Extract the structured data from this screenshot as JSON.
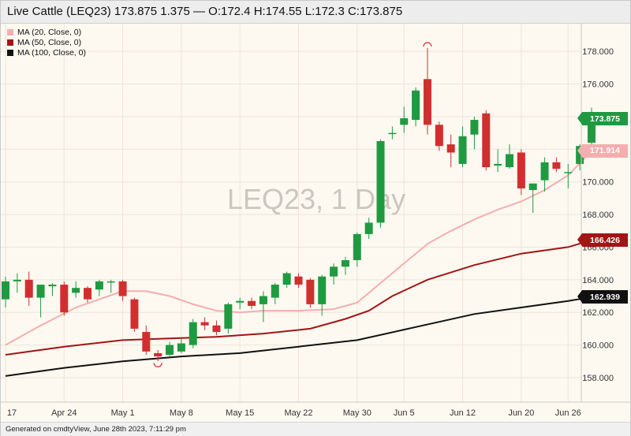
{
  "header": {
    "title": "Live Cattle (LEQ23) 173.875 1.375 — O:172.4 H:174.55 L:172.3 C:173.875"
  },
  "watermark": "LEQ23, 1 Day",
  "legend": [
    {
      "label": "MA (20, Close, 0)",
      "color": "#f4aeb0"
    },
    {
      "label": "MA (50, Close, 0)",
      "color": "#a31414"
    },
    {
      "label": "MA (100, Close, 0)",
      "color": "#111111"
    }
  ],
  "price_badges": [
    {
      "label": "173.875",
      "value": 173.875,
      "bg": "#1f9a41",
      "fg": "#ffffff"
    },
    {
      "label": "171.914",
      "value": 171.914,
      "bg": "#f4aeb0",
      "fg": "#ffffff"
    },
    {
      "label": "166.426",
      "value": 166.426,
      "bg": "#a31414",
      "fg": "#ffffff"
    },
    {
      "label": "162.939",
      "value": 162.939,
      "bg": "#111111",
      "fg": "#ffffff"
    }
  ],
  "footer": {
    "text": "Generated on cmdtyView, June 28th 2023, 7:11:29 pm"
  },
  "colors": {
    "up": "#1f9a41",
    "down": "#d12f2f",
    "background": "#fdf9f1",
    "grid": "#ebe5d8"
  },
  "chart_data": {
    "type": "candlestick",
    "title": "Live Cattle (LEQ23) 173.875 1.375 — O:172.4 H:174.55 L:172.3 C:173.875",
    "ylim": [
      156.5,
      179.7
    ],
    "y_ticks": [
      158.0,
      160.0,
      162.0,
      164.0,
      166.0,
      168.0,
      170.0,
      172.0,
      174.0,
      176.0,
      178.0
    ],
    "y_tick_labels": [
      "158.000",
      "160.000",
      "162.000",
      "164.000",
      "166.000",
      "168.000",
      "170.000",
      "172.000",
      "174.000",
      "176.000",
      "178.000"
    ],
    "x_tick_labels": [
      {
        "label": "17",
        "index": 0
      },
      {
        "label": "Apr 24",
        "index": 5
      },
      {
        "label": "May 1",
        "index": 10
      },
      {
        "label": "May 8",
        "index": 15
      },
      {
        "label": "May 15",
        "index": 20
      },
      {
        "label": "May 22",
        "index": 25
      },
      {
        "label": "May 30",
        "index": 30
      },
      {
        "label": "Jun 5",
        "index": 34
      },
      {
        "label": "Jun 12",
        "index": 39
      },
      {
        "label": "Jun 20",
        "index": 44
      },
      {
        "label": "Jun 26",
        "index": 48
      }
    ],
    "candles": [
      {
        "o": 162.8,
        "h": 164.2,
        "l": 162.3,
        "c": 163.9
      },
      {
        "o": 163.9,
        "h": 164.4,
        "l": 163.2,
        "c": 164.0
      },
      {
        "o": 164.0,
        "h": 164.5,
        "l": 162.4,
        "c": 162.9
      },
      {
        "o": 162.9,
        "h": 163.6,
        "l": 161.7,
        "c": 163.7
      },
      {
        "o": 163.6,
        "h": 163.8,
        "l": 163.0,
        "c": 163.7
      },
      {
        "o": 163.7,
        "h": 163.9,
        "l": 161.8,
        "c": 162.0
      },
      {
        "o": 163.2,
        "h": 163.9,
        "l": 162.9,
        "c": 163.5
      },
      {
        "o": 163.5,
        "h": 163.6,
        "l": 162.6,
        "c": 162.8
      },
      {
        "o": 163.4,
        "h": 164.0,
        "l": 163.0,
        "c": 163.9
      },
      {
        "o": 163.9,
        "h": 164.0,
        "l": 163.2,
        "c": 163.9
      },
      {
        "o": 163.9,
        "h": 164.0,
        "l": 162.7,
        "c": 163.0
      },
      {
        "o": 162.8,
        "h": 162.9,
        "l": 160.8,
        "c": 161.0
      },
      {
        "o": 160.8,
        "h": 161.2,
        "l": 159.4,
        "c": 159.6
      },
      {
        "o": 159.5,
        "h": 159.7,
        "l": 159.0,
        "c": 159.3
      },
      {
        "o": 159.4,
        "h": 160.2,
        "l": 159.3,
        "c": 160.0
      },
      {
        "o": 159.6,
        "h": 160.4,
        "l": 159.5,
        "c": 160.1
      },
      {
        "o": 160.0,
        "h": 161.6,
        "l": 159.8,
        "c": 161.4
      },
      {
        "o": 161.4,
        "h": 161.7,
        "l": 160.9,
        "c": 161.2
      },
      {
        "o": 161.2,
        "h": 161.5,
        "l": 160.6,
        "c": 160.8
      },
      {
        "o": 161.0,
        "h": 162.6,
        "l": 160.7,
        "c": 162.5
      },
      {
        "o": 162.6,
        "h": 162.9,
        "l": 162.2,
        "c": 162.7
      },
      {
        "o": 162.7,
        "h": 162.9,
        "l": 162.2,
        "c": 162.4
      },
      {
        "o": 162.5,
        "h": 163.3,
        "l": 161.4,
        "c": 163.0
      },
      {
        "o": 162.9,
        "h": 163.8,
        "l": 162.5,
        "c": 163.7
      },
      {
        "o": 163.7,
        "h": 164.5,
        "l": 163.5,
        "c": 164.4
      },
      {
        "o": 164.2,
        "h": 164.4,
        "l": 163.5,
        "c": 163.7
      },
      {
        "o": 164.0,
        "h": 164.1,
        "l": 162.3,
        "c": 162.5
      },
      {
        "o": 162.5,
        "h": 164.3,
        "l": 161.8,
        "c": 164.2
      },
      {
        "o": 164.2,
        "h": 165.0,
        "l": 163.7,
        "c": 164.8
      },
      {
        "o": 164.8,
        "h": 165.4,
        "l": 164.3,
        "c": 165.2
      },
      {
        "o": 165.2,
        "h": 166.9,
        "l": 164.8,
        "c": 166.8
      },
      {
        "o": 166.8,
        "h": 167.8,
        "l": 166.5,
        "c": 167.5
      },
      {
        "o": 167.5,
        "h": 172.6,
        "l": 167.2,
        "c": 172.5
      },
      {
        "o": 173.0,
        "h": 173.4,
        "l": 172.6,
        "c": 173.0
      },
      {
        "o": 173.5,
        "h": 174.6,
        "l": 173.0,
        "c": 173.9
      },
      {
        "o": 173.8,
        "h": 175.8,
        "l": 173.4,
        "c": 175.6
      },
      {
        "o": 176.3,
        "h": 178.2,
        "l": 172.9,
        "c": 173.5
      },
      {
        "o": 173.5,
        "h": 173.7,
        "l": 171.9,
        "c": 172.2
      },
      {
        "o": 172.3,
        "h": 172.9,
        "l": 170.9,
        "c": 171.8
      },
      {
        "o": 171.1,
        "h": 173.4,
        "l": 170.9,
        "c": 172.8
      },
      {
        "o": 172.9,
        "h": 174.0,
        "l": 172.0,
        "c": 173.8
      },
      {
        "o": 174.2,
        "h": 174.4,
        "l": 170.7,
        "c": 170.9
      },
      {
        "o": 171.0,
        "h": 172.0,
        "l": 170.6,
        "c": 171.1
      },
      {
        "o": 170.9,
        "h": 172.3,
        "l": 170.8,
        "c": 171.7
      },
      {
        "o": 171.8,
        "h": 172.0,
        "l": 169.2,
        "c": 169.6
      },
      {
        "o": 169.5,
        "h": 169.9,
        "l": 168.1,
        "c": 169.9
      },
      {
        "o": 170.1,
        "h": 171.5,
        "l": 169.4,
        "c": 171.2
      },
      {
        "o": 171.2,
        "h": 171.5,
        "l": 170.6,
        "c": 170.8
      },
      {
        "o": 170.6,
        "h": 171.1,
        "l": 169.6,
        "c": 170.6
      },
      {
        "o": 171.1,
        "h": 172.3,
        "l": 170.7,
        "c": 172.2
      },
      {
        "o": 172.4,
        "h": 174.55,
        "l": 172.3,
        "c": 173.875
      }
    ],
    "series": [
      {
        "name": "MA (20, Close, 0)",
        "color": "#f4aeb0",
        "points": [
          [
            0,
            160.0
          ],
          [
            3,
            161.2
          ],
          [
            6,
            162.3
          ],
          [
            8,
            162.8
          ],
          [
            10,
            163.3
          ],
          [
            12,
            163.3
          ],
          [
            14,
            163.0
          ],
          [
            16,
            162.5
          ],
          [
            18,
            162.1
          ],
          [
            20,
            162.0
          ],
          [
            22,
            162.1
          ],
          [
            25,
            162.1
          ],
          [
            28,
            162.2
          ],
          [
            30,
            162.6
          ],
          [
            32,
            163.8
          ],
          [
            34,
            165.0
          ],
          [
            36,
            166.2
          ],
          [
            38,
            167.0
          ],
          [
            40,
            167.7
          ],
          [
            42,
            168.3
          ],
          [
            44,
            168.8
          ],
          [
            46,
            169.5
          ],
          [
            48,
            170.4
          ],
          [
            50,
            171.9
          ]
        ]
      },
      {
        "name": "MA (50, Close, 0)",
        "color": "#a31414",
        "points": [
          [
            0,
            159.4
          ],
          [
            5,
            159.9
          ],
          [
            10,
            160.3
          ],
          [
            14,
            160.4
          ],
          [
            18,
            160.5
          ],
          [
            22,
            160.7
          ],
          [
            26,
            161.0
          ],
          [
            29,
            161.6
          ],
          [
            31,
            162.1
          ],
          [
            33,
            163.0
          ],
          [
            36,
            164.0
          ],
          [
            40,
            164.9
          ],
          [
            44,
            165.6
          ],
          [
            48,
            166.0
          ],
          [
            50,
            166.43
          ]
        ]
      },
      {
        "name": "MA (100, Close, 0)",
        "color": "#111111",
        "points": [
          [
            0,
            158.1
          ],
          [
            5,
            158.6
          ],
          [
            10,
            159.0
          ],
          [
            15,
            159.3
          ],
          [
            20,
            159.5
          ],
          [
            25,
            159.9
          ],
          [
            30,
            160.3
          ],
          [
            35,
            161.1
          ],
          [
            40,
            161.9
          ],
          [
            44,
            162.3
          ],
          [
            48,
            162.7
          ],
          [
            50,
            162.94
          ]
        ]
      }
    ]
  }
}
